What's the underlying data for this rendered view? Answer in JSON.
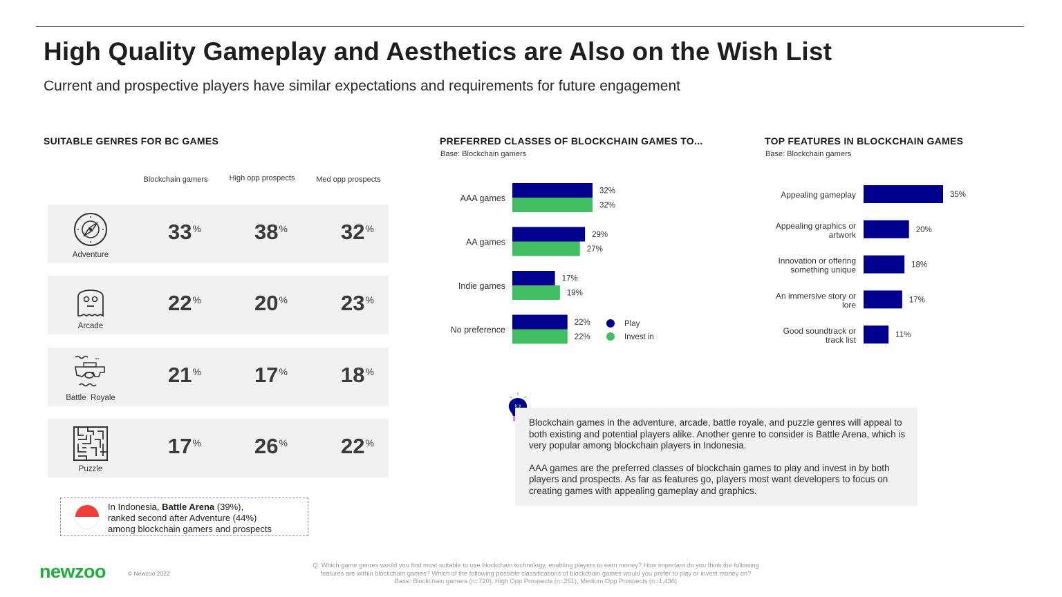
{
  "header": {
    "title": "High Quality Gameplay and Aesthetics are Also on the Wish List",
    "subtitle": "Current and prospective players have similar expectations and requirements for future engagement"
  },
  "genres": {
    "section_title": "SUITABLE GENRES FOR BC GAMES",
    "columns": [
      "Blockchain gamers",
      "High opp prospects",
      "Med opp prospects"
    ],
    "pct_sign": "%",
    "rows": [
      {
        "name": "Adventure",
        "icon": "compass-icon",
        "values": [
          "33",
          "38",
          "32"
        ]
      },
      {
        "name": "Arcade",
        "icon": "ghost-icon",
        "values": [
          "22",
          "20",
          "23"
        ]
      },
      {
        "name": "Battle  Royale",
        "icon": "gun-icon",
        "values": [
          "21",
          "17",
          "18"
        ]
      },
      {
        "name": "Puzzle",
        "icon": "maze-icon",
        "values": [
          "17",
          "26",
          "22"
        ]
      }
    ],
    "indonesia_note": {
      "flag_icon": "indonesia-flag-icon",
      "prefix": "In Indonesia, ",
      "bold": "Battle Arena",
      "after_bold": " (39%),",
      "line2": "ranked second after Adventure (44%)",
      "line3": "among blockchain gamers and prospects"
    }
  },
  "chart_data": [
    {
      "type": "bar",
      "orientation": "horizontal",
      "title": "PREFERRED CLASSES OF BLOCKCHAIN GAMES TO...",
      "subtitle": "Base: Blockchain gamers",
      "categories": [
        "AAA games",
        "AA games",
        "Indie games",
        "No preference"
      ],
      "series": [
        {
          "name": "Play",
          "color": "#00008f",
          "values": [
            32,
            29,
            17,
            22
          ]
        },
        {
          "name": "Invest in",
          "color": "#41be64",
          "values": [
            32,
            27,
            19,
            22
          ]
        }
      ],
      "value_suffix": "%",
      "legend": "right",
      "grid": false,
      "xlim": [
        0,
        35
      ]
    },
    {
      "type": "bar",
      "orientation": "horizontal",
      "title": "TOP FEATURES IN BLOCKCHAIN GAMES",
      "subtitle": "Base: Blockchain gamers",
      "categories": [
        [
          "Appealing gameplay"
        ],
        [
          "Appealing graphics or",
          "artwork"
        ],
        [
          "Innovation or offering",
          "something unique"
        ],
        [
          "An immersive story or",
          "lore"
        ],
        [
          "Good soundtrack or",
          "track list"
        ]
      ],
      "series": [
        {
          "name": "Blockchain gamers",
          "color": "#00008f",
          "values": [
            35,
            20,
            18,
            17,
            11
          ]
        }
      ],
      "value_suffix": "%",
      "grid": false,
      "xlim": [
        0,
        35
      ]
    }
  ],
  "insight": {
    "icon": "lightbulb-icon",
    "paragraphs": [
      "Blockchain games in the adventure, arcade, battle royale, and puzzle genres will appeal to both existing and potential players alike. Another genre to consider is Battle Arena, which is very popular among blockchain players in Indonesia.",
      "AAA games are the preferred classes of blockchain games to play and invest in by both players and prospects. As far as features go, players most want developers to focus on creating games with appealing gameplay and graphics."
    ]
  },
  "footer": {
    "logo": "newzoo",
    "copyright": "© Newzoo 2022",
    "footnote_lines": [
      "Q. Which game genres would you find most suitable to use blockchain technology, enabling players to earn money? How important do you think the following",
      "features are within blockchain games? Which of the following possible classifications of blockchain games would you prefer to play or invest money on?",
      "Base: Blockchain gamers (n=720), High Opp Prospects (n=251), Medium Opp Prospects (n=1,436)"
    ]
  }
}
